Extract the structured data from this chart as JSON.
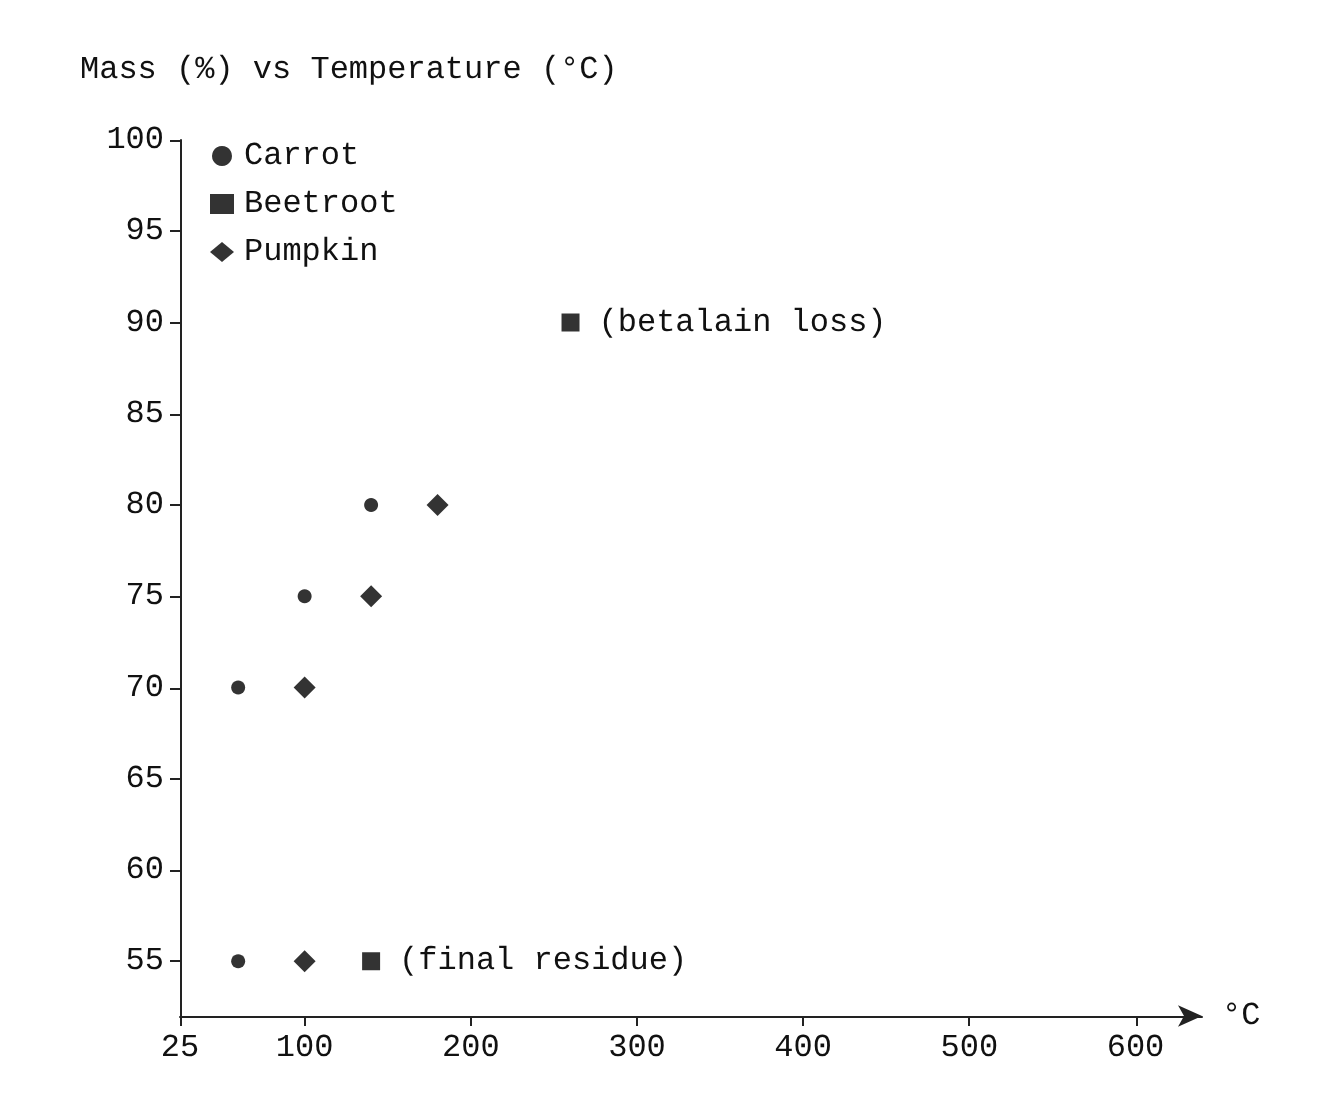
{
  "chart_data": {
    "type": "scatter",
    "title": "Mass (%) vs Temperature (°C)",
    "xlabel": "°C",
    "series": [
      {
        "name": "Carrot",
        "color": "#000000",
        "marker": "circle",
        "x": [
          60,
          100,
          140,
          60
        ],
        "values": [
          70,
          75,
          80,
          55
        ]
      },
      {
        "name": "Beetroot",
        "color": "#000000",
        "marker": "square",
        "x": [
          260,
          140
        ],
        "values": [
          90,
          55
        ]
      },
      {
        "name": "Pumpkin",
        "color": "#000000",
        "marker": "diamond",
        "x": [
          100,
          140,
          180,
          100
        ],
        "values": [
          70,
          75,
          80,
          55
        ]
      }
    ],
    "annotations": [
      {
        "text": "(betalain loss)",
        "x": 260,
        "y": 90
      },
      {
        "text": "(final residue)",
        "x": 140,
        "y": 55
      }
    ],
    "xlim": [
      25,
      640
    ],
    "xticks": [
      25,
      100,
      200,
      300,
      400,
      500,
      600
    ],
    "ylim": [
      52,
      100
    ],
    "yticks": [
      55,
      60,
      65,
      70,
      75,
      80,
      85,
      90,
      95,
      100
    ],
    "grid": false,
    "legend": "top left"
  }
}
